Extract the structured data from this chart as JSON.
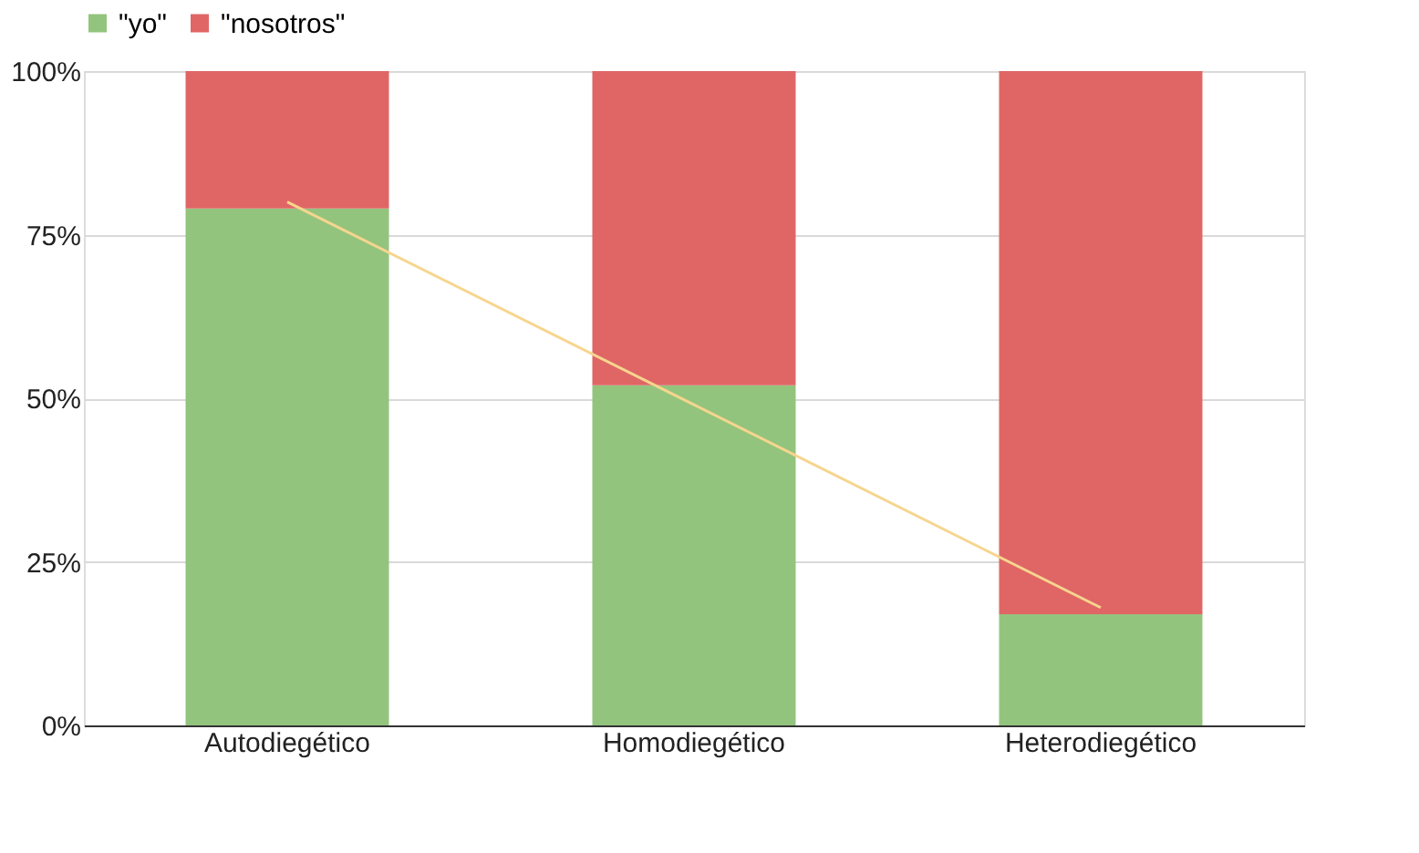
{
  "chart_data": {
    "type": "bar",
    "stacked": true,
    "categories": [
      "Autodiegético",
      "Homodiegético",
      "Heterodiegético"
    ],
    "series": [
      {
        "name": "\"yo\"",
        "color": "#93c47d",
        "values": [
          79,
          52,
          17
        ]
      },
      {
        "name": "\"nosotros\"",
        "color": "#e06666",
        "values": [
          21,
          48,
          83
        ]
      },
      {
        "type": "line",
        "color": "#f6d58e",
        "values": [
          80,
          49,
          18
        ]
      }
    ],
    "ylim": [
      0,
      100
    ],
    "yticks": [
      {
        "value": 0,
        "label": "0%"
      },
      {
        "value": 25,
        "label": "25%"
      },
      {
        "value": 50,
        "label": "50%"
      },
      {
        "value": 75,
        "label": "75%"
      },
      {
        "value": 100,
        "label": "100%"
      }
    ],
    "grid": "y",
    "legend": "top"
  }
}
